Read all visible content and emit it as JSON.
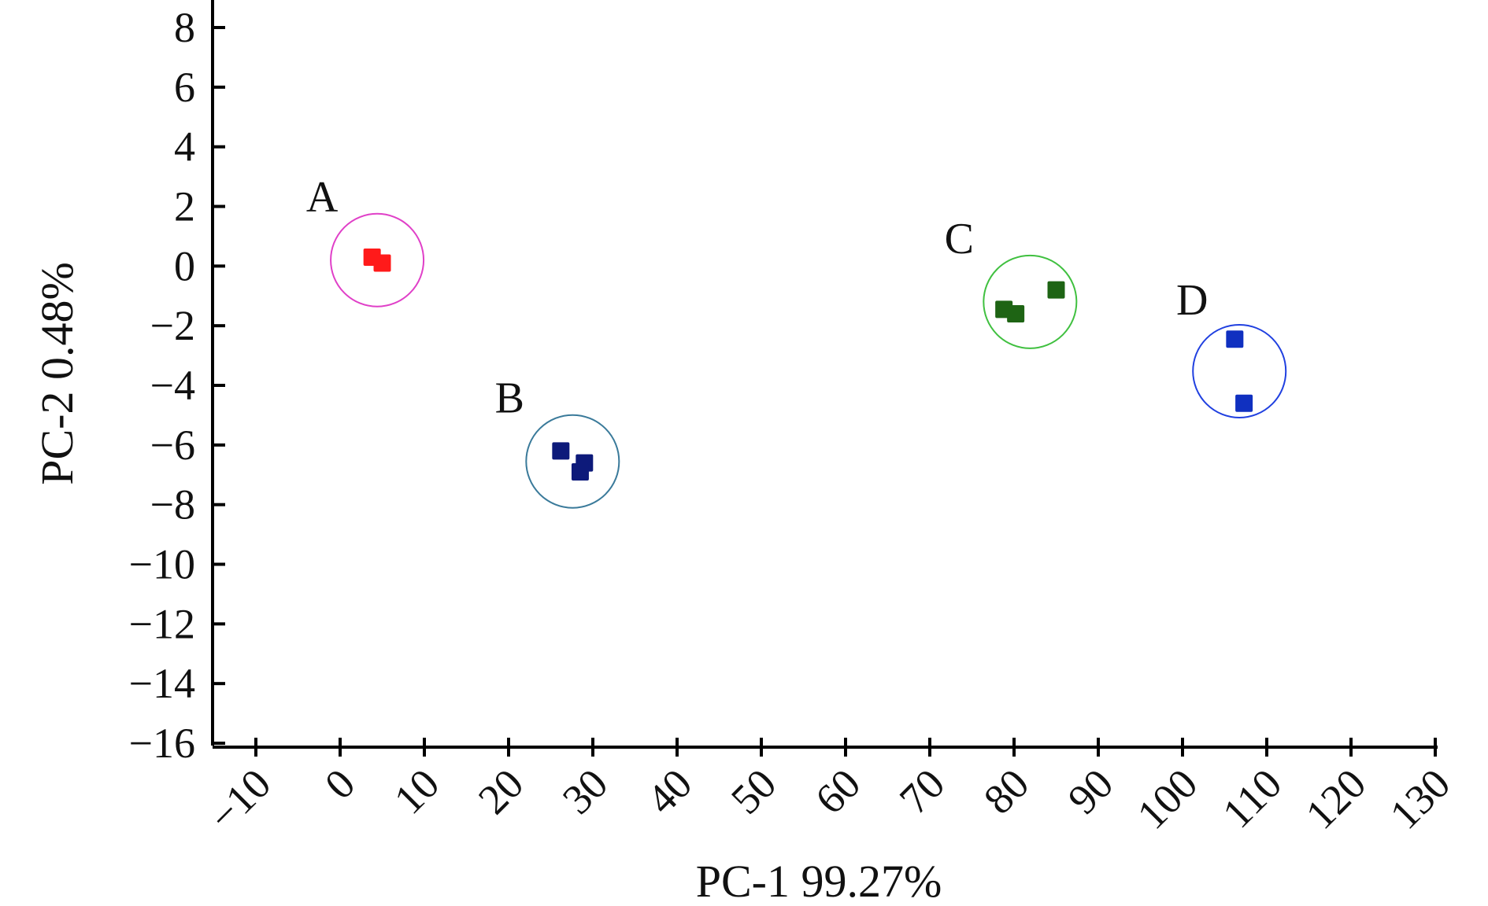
{
  "chart_data": {
    "type": "scatter",
    "xlabel": "PC-1 99.27%",
    "ylabel": "PC-2 0.48%",
    "xlim": [
      -15,
      130
    ],
    "ylim": [
      -16.5,
      9
    ],
    "xticks": [
      "−10",
      "0",
      "10",
      "20",
      "30",
      "40",
      "50",
      "60",
      "70",
      "80",
      "90",
      "100",
      "110",
      "120",
      "130"
    ],
    "yticks": [
      "8",
      "6",
      "4",
      "2",
      "0",
      "−2",
      "−4",
      "−6",
      "−8",
      "−10",
      "−12",
      "−14",
      "−16"
    ],
    "grid": false,
    "groups": [
      {
        "label": "A",
        "color": "#ff1a1a",
        "circle_color": "#e040c8",
        "points": [
          {
            "x": 3.8,
            "y": 0.3
          },
          {
            "x": 5.0,
            "y": 0.1
          }
        ]
      },
      {
        "label": "B",
        "color": "#0d1a7a",
        "circle_color": "#3a7a9a",
        "points": [
          {
            "x": 26.2,
            "y": -6.2
          },
          {
            "x": 29.0,
            "y": -6.6
          },
          {
            "x": 28.5,
            "y": -6.9
          }
        ]
      },
      {
        "label": "C",
        "color": "#1e6414",
        "circle_color": "#40c040",
        "points": [
          {
            "x": 78.8,
            "y": -1.45
          },
          {
            "x": 80.2,
            "y": -1.6
          },
          {
            "x": 85.0,
            "y": -0.8
          }
        ]
      },
      {
        "label": "D",
        "color": "#1030c0",
        "circle_color": "#2040e0",
        "points": [
          {
            "x": 106.2,
            "y": -2.45
          },
          {
            "x": 107.3,
            "y": -4.6
          }
        ]
      }
    ]
  }
}
